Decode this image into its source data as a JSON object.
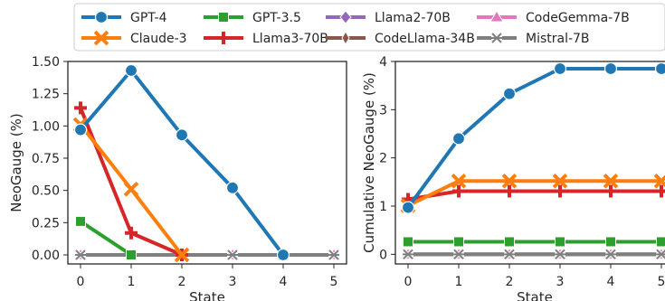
{
  "colors": {
    "GPT-4": "#1f77b4",
    "Claude-3": "#ff7f0e",
    "GPT-3.5": "#2ca02c",
    "Llama3-70B": "#d62728",
    "Llama2-70B": "#9467bd",
    "CodeLlama-34B": "#8c564b",
    "CodeGemma-7B": "#e377c2",
    "Mistral-7B": "#7f7f7f"
  },
  "legend": {
    "placement": "top",
    "entries": [
      {
        "name": "GPT-4",
        "marker": "circle"
      },
      {
        "name": "GPT-3.5",
        "marker": "square"
      },
      {
        "name": "Llama2-70B",
        "marker": "diamond"
      },
      {
        "name": "CodeGemma-7B",
        "marker": "triangle"
      },
      {
        "name": "Claude-3",
        "marker": "x"
      },
      {
        "name": "Llama3-70B",
        "marker": "plus"
      },
      {
        "name": "CodeLlama-34B",
        "marker": "thin-diamond"
      },
      {
        "name": "Mistral-7B",
        "marker": "star"
      }
    ]
  },
  "chart_data": [
    {
      "type": "line",
      "xlabel": "State",
      "ylabel": "NeoGauge (%)",
      "x": [
        0,
        1,
        2,
        3,
        4,
        5
      ],
      "xlim": [
        -0.25,
        5.25
      ],
      "ylim": [
        -0.07,
        1.5
      ],
      "yticks": [
        0.0,
        0.25,
        0.5,
        0.75,
        1.0,
        1.25,
        1.5
      ],
      "ytick_labels": [
        "0.00",
        "0.25",
        "0.50",
        "0.75",
        "1.00",
        "1.25",
        "1.50"
      ],
      "xtick_labels": [
        "0",
        "1",
        "2",
        "3",
        "4",
        "5"
      ],
      "grid": false,
      "series": [
        {
          "name": "Llama2-70B",
          "x": [
            0,
            1,
            2,
            3,
            4,
            5
          ],
          "values": [
            0,
            0,
            0,
            0,
            0,
            0
          ]
        },
        {
          "name": "CodeLlama-34B",
          "x": [
            0,
            1,
            2,
            3,
            4,
            5
          ],
          "values": [
            0,
            0,
            0,
            0,
            0,
            0
          ]
        },
        {
          "name": "CodeGemma-7B",
          "x": [
            0,
            1,
            2,
            3,
            4,
            5
          ],
          "values": [
            0,
            0,
            0,
            0,
            0,
            0
          ]
        },
        {
          "name": "Mistral-7B",
          "x": [
            0,
            1,
            2,
            3,
            4,
            5
          ],
          "values": [
            0,
            0,
            0,
            0,
            0,
            0
          ]
        },
        {
          "name": "GPT-3.5",
          "x": [
            0,
            1
          ],
          "values": [
            0.26,
            0.0
          ]
        },
        {
          "name": "Llama3-70B",
          "x": [
            0,
            1,
            2
          ],
          "values": [
            1.14,
            0.17,
            0.0
          ]
        },
        {
          "name": "Claude-3",
          "x": [
            0,
            1,
            2
          ],
          "values": [
            1.01,
            0.51,
            0.0
          ]
        },
        {
          "name": "GPT-4",
          "x": [
            0,
            1,
            2,
            3,
            4
          ],
          "values": [
            0.97,
            1.43,
            0.93,
            0.52,
            0.0
          ]
        }
      ]
    },
    {
      "type": "line",
      "xlabel": "State",
      "ylabel": "Cumulative NeoGauge (%)",
      "x": [
        0,
        1,
        2,
        3,
        4,
        5
      ],
      "xlim": [
        -0.25,
        5.25
      ],
      "ylim": [
        -0.2,
        4.0
      ],
      "yticks": [
        0,
        1,
        2,
        3,
        4
      ],
      "ytick_labels": [
        "0",
        "1",
        "2",
        "3",
        "4"
      ],
      "xtick_labels": [
        "0",
        "1",
        "2",
        "3",
        "4",
        "5"
      ],
      "grid": false,
      "series": [
        {
          "name": "Llama2-70B",
          "x": [
            0,
            1,
            2,
            3,
            4,
            5
          ],
          "values": [
            0,
            0,
            0,
            0,
            0,
            0
          ]
        },
        {
          "name": "CodeLlama-34B",
          "x": [
            0,
            1,
            2,
            3,
            4,
            5
          ],
          "values": [
            0,
            0,
            0,
            0,
            0,
            0
          ]
        },
        {
          "name": "CodeGemma-7B",
          "x": [
            0,
            1,
            2,
            3,
            4,
            5
          ],
          "values": [
            0,
            0,
            0,
            0,
            0,
            0
          ]
        },
        {
          "name": "Mistral-7B",
          "x": [
            0,
            1,
            2,
            3,
            4,
            5
          ],
          "values": [
            0,
            0,
            0,
            0,
            0,
            0
          ]
        },
        {
          "name": "GPT-3.5",
          "x": [
            0,
            1,
            2,
            3,
            4,
            5
          ],
          "values": [
            0.26,
            0.26,
            0.26,
            0.26,
            0.26,
            0.26
          ]
        },
        {
          "name": "Llama3-70B",
          "x": [
            0,
            1,
            2,
            3,
            4,
            5
          ],
          "values": [
            1.14,
            1.31,
            1.31,
            1.31,
            1.31,
            1.31
          ]
        },
        {
          "name": "Claude-3",
          "x": [
            0,
            1,
            2,
            3,
            4,
            5
          ],
          "values": [
            1.01,
            1.52,
            1.52,
            1.52,
            1.52,
            1.52
          ]
        },
        {
          "name": "GPT-4",
          "x": [
            0,
            1,
            2,
            3,
            4,
            5
          ],
          "values": [
            0.97,
            2.4,
            3.33,
            3.85,
            3.85,
            3.85
          ]
        }
      ]
    }
  ]
}
